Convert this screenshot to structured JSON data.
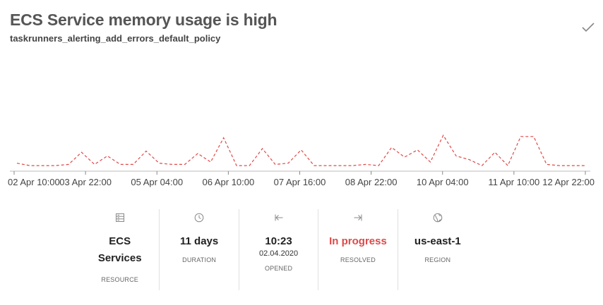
{
  "header": {
    "title": "ECS Service memory usage is high",
    "subtitle": "taskrunners_alerting_add_errors_default_policy",
    "resolve_icon": "checkmark-icon"
  },
  "chart_data": {
    "type": "line",
    "line_style": "dashed",
    "color": "#e04848",
    "grid": false,
    "tick_labels": [
      "02 Apr 10:00",
      "03 Apr 22:00",
      "05 Apr 04:00",
      "06 Apr 10:00",
      "07 Apr 16:00",
      "08 Apr 22:00",
      "10 Apr 04:00",
      "11 Apr 10:00",
      "12 Apr 22:00"
    ],
    "series": [
      {
        "values": [
          0.06,
          0.04,
          0.04,
          0.04,
          0.05,
          0.15,
          0.05,
          0.12,
          0.05,
          0.05,
          0.16,
          0.06,
          0.05,
          0.05,
          0.14,
          0.07,
          0.27,
          0.04,
          0.04,
          0.18,
          0.05,
          0.06,
          0.17,
          0.04,
          0.04,
          0.04,
          0.04,
          0.05,
          0.04,
          0.19,
          0.11,
          0.17,
          0.07,
          0.29,
          0.12,
          0.09,
          0.04,
          0.15,
          0.04,
          0.28,
          0.28,
          0.05,
          0.04,
          0.04,
          0.04
        ]
      }
    ]
  },
  "stats": [
    {
      "icon": "server-icon",
      "value": "ECS Services",
      "label": "RESOURCE"
    },
    {
      "icon": "clock-icon",
      "value": "11 days",
      "label": "DURATION"
    },
    {
      "icon": "arrow-left-bar-icon",
      "value": "10:23",
      "subvalue": "02.04.2020",
      "label": "OPENED"
    },
    {
      "icon": "arrow-right-bar-icon",
      "value": "In progress",
      "label": "RESOLVED",
      "value_color": "#e04848"
    },
    {
      "icon": "globe-icon",
      "value": "us-east-1",
      "label": "REGION"
    }
  ]
}
